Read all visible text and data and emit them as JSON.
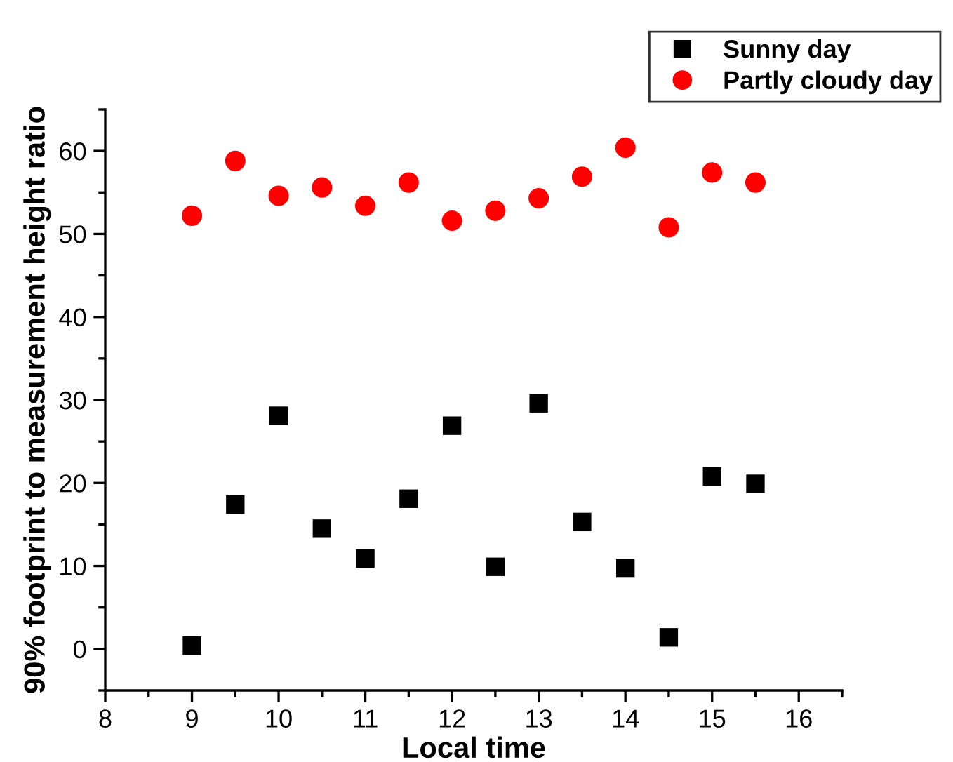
{
  "chart_data": {
    "type": "scatter",
    "xlabel": "Local time",
    "ylabel": "90% footprint to measurement height ratio",
    "x": [
      9,
      9.5,
      10,
      10.5,
      11,
      11.5,
      12,
      12.5,
      13,
      13.5,
      14,
      14.5,
      15,
      15.5
    ],
    "series": [
      {
        "name": "Sunny day",
        "color": "#000000",
        "marker": "square",
        "values": [
          0.4,
          17.4,
          28.1,
          14.5,
          10.9,
          18.1,
          26.9,
          9.9,
          29.6,
          15.3,
          9.7,
          1.4,
          20.8,
          19.9
        ]
      },
      {
        "name": "Partly cloudy day",
        "color": "#ff0000",
        "marker": "circle",
        "values": [
          52.2,
          58.8,
          54.6,
          55.6,
          53.4,
          56.2,
          51.6,
          52.8,
          54.3,
          56.9,
          60.4,
          50.8,
          57.4,
          56.2
        ]
      }
    ],
    "xlim": [
      8,
      16.5
    ],
    "xticks": [
      8,
      9,
      10,
      11,
      12,
      13,
      14,
      15,
      16
    ],
    "ylim": [
      -5,
      65
    ],
    "yticks": [
      0,
      10,
      20,
      30,
      40,
      50,
      60
    ],
    "grid": false,
    "legend": "top right"
  }
}
